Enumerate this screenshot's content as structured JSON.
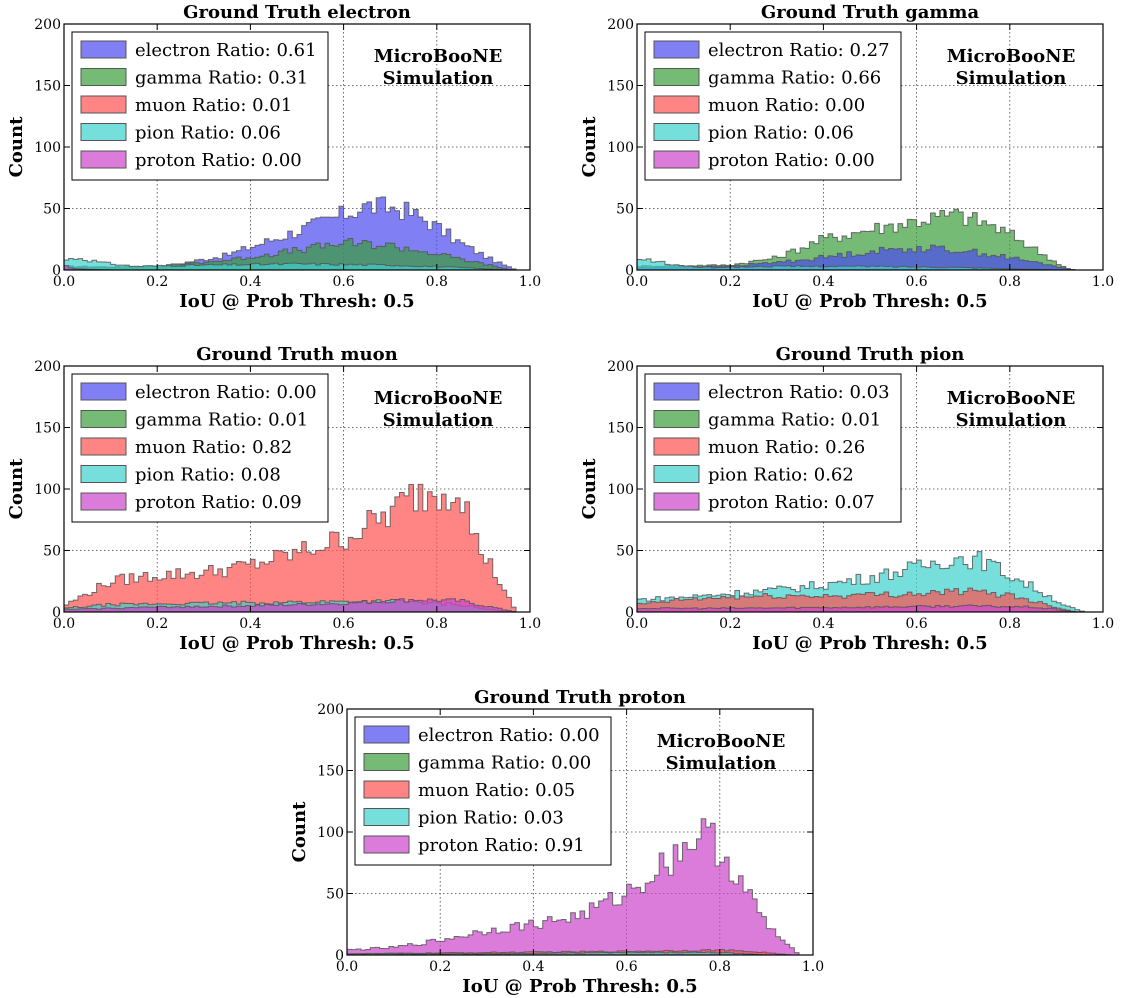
{
  "figure": {
    "annotation_lines": [
      "MicroBooNE",
      "Simulation"
    ]
  },
  "colors": {
    "electron": "#4a4af0",
    "gamma": "#3a9c3a",
    "muon": "#ff5050",
    "pion": "#3cd0cc",
    "proton": "#cc44cc"
  },
  "chart_data": [
    {
      "type": "histogram",
      "title": "Ground Truth electron",
      "xlabel": "IoU @ Prob Thresh: 0.5",
      "ylabel": "Count",
      "xlim": [
        0.0,
        1.0
      ],
      "ylim": [
        0,
        200
      ],
      "xticks": [
        "0.0",
        "0.2",
        "0.4",
        "0.6",
        "0.8",
        "1.0"
      ],
      "yticks": [
        "0",
        "50",
        "100",
        "150",
        "200"
      ],
      "grid": true,
      "legend": "top-left",
      "legend_entries": [
        "electron Ratio: 0.61",
        "gamma Ratio: 0.31",
        "muon Ratio: 0.01",
        "pion Ratio: 0.06",
        "proton Ratio: 0.00"
      ],
      "series": [
        {
          "key": "electron",
          "shape": [
            [
              0,
              3
            ],
            [
              0.2,
              2
            ],
            [
              0.35,
              12
            ],
            [
              0.45,
              25
            ],
            [
              0.55,
              38
            ],
            [
              0.65,
              52
            ],
            [
              0.72,
              50
            ],
            [
              0.78,
              40
            ],
            [
              0.85,
              22
            ],
            [
              0.92,
              8
            ],
            [
              0.97,
              0
            ]
          ]
        },
        {
          "key": "gamma",
          "shape": [
            [
              0,
              2
            ],
            [
              0.2,
              3
            ],
            [
              0.35,
              8
            ],
            [
              0.5,
              16
            ],
            [
              0.6,
              22
            ],
            [
              0.7,
              20
            ],
            [
              0.8,
              13
            ],
            [
              0.9,
              5
            ],
            [
              0.96,
              0
            ]
          ]
        },
        {
          "key": "pion",
          "shape": [
            [
              0,
              8
            ],
            [
              0.03,
              10
            ],
            [
              0.08,
              6
            ],
            [
              0.15,
              3
            ],
            [
              0.3,
              4
            ],
            [
              0.5,
              5
            ],
            [
              0.7,
              4
            ],
            [
              0.85,
              2
            ],
            [
              0.95,
              0
            ]
          ]
        },
        {
          "key": "proton",
          "shape": [
            [
              0,
              4
            ],
            [
              0.02,
              1
            ],
            [
              0.1,
              0
            ]
          ]
        }
      ]
    },
    {
      "type": "histogram",
      "title": "Ground Truth gamma",
      "xlabel": "IoU @ Prob Thresh: 0.5",
      "ylabel": "Count",
      "xlim": [
        0.0,
        1.0
      ],
      "ylim": [
        0,
        200
      ],
      "xticks": [
        "0.0",
        "0.2",
        "0.4",
        "0.6",
        "0.8",
        "1.0"
      ],
      "yticks": [
        "0",
        "50",
        "100",
        "150",
        "200"
      ],
      "grid": true,
      "legend": "top-left",
      "legend_entries": [
        "electron Ratio: 0.27",
        "gamma Ratio: 0.66",
        "muon Ratio: 0.00",
        "pion Ratio: 0.06",
        "proton Ratio: 0.00"
      ],
      "series": [
        {
          "key": "gamma",
          "shape": [
            [
              0,
              3
            ],
            [
              0.2,
              4
            ],
            [
              0.3,
              10
            ],
            [
              0.4,
              25
            ],
            [
              0.5,
              33
            ],
            [
              0.6,
              40
            ],
            [
              0.68,
              45
            ],
            [
              0.75,
              38
            ],
            [
              0.82,
              25
            ],
            [
              0.9,
              6
            ],
            [
              0.93,
              0
            ]
          ]
        },
        {
          "key": "electron",
          "shape": [
            [
              0,
              2
            ],
            [
              0.2,
              3
            ],
            [
              0.35,
              8
            ],
            [
              0.5,
              15
            ],
            [
              0.6,
              18
            ],
            [
              0.7,
              16
            ],
            [
              0.8,
              10
            ],
            [
              0.9,
              3
            ],
            [
              0.94,
              0
            ]
          ]
        },
        {
          "key": "pion",
          "shape": [
            [
              0,
              8
            ],
            [
              0.03,
              8
            ],
            [
              0.08,
              4
            ],
            [
              0.15,
              2
            ],
            [
              0.3,
              3
            ],
            [
              0.5,
              3
            ],
            [
              0.7,
              2
            ],
            [
              0.9,
              0
            ]
          ]
        }
      ]
    },
    {
      "type": "histogram",
      "title": "Ground Truth muon",
      "xlabel": "IoU @ Prob Thresh: 0.5",
      "ylabel": "Count",
      "xlim": [
        0.0,
        1.0
      ],
      "ylim": [
        0,
        200
      ],
      "xticks": [
        "0.0",
        "0.2",
        "0.4",
        "0.6",
        "0.8",
        "1.0"
      ],
      "yticks": [
        "0",
        "50",
        "100",
        "150",
        "200"
      ],
      "grid": true,
      "legend": "top-left",
      "legend_entries": [
        "electron Ratio: 0.00",
        "gamma Ratio: 0.01",
        "muon Ratio: 0.82",
        "pion Ratio: 0.08",
        "proton Ratio: 0.09"
      ],
      "series": [
        {
          "key": "muon",
          "shape": [
            [
              0,
              5
            ],
            [
              0.05,
              15
            ],
            [
              0.1,
              25
            ],
            [
              0.2,
              30
            ],
            [
              0.3,
              32
            ],
            [
              0.4,
              38
            ],
            [
              0.5,
              48
            ],
            [
              0.6,
              60
            ],
            [
              0.7,
              80
            ],
            [
              0.75,
              95
            ],
            [
              0.82,
              100
            ],
            [
              0.85,
              105
            ],
            [
              0.88,
              60
            ],
            [
              0.92,
              35
            ],
            [
              0.97,
              0
            ]
          ]
        },
        {
          "key": "pion",
          "shape": [
            [
              0,
              3
            ],
            [
              0.1,
              6
            ],
            [
              0.3,
              7
            ],
            [
              0.5,
              8
            ],
            [
              0.7,
              9
            ],
            [
              0.85,
              6
            ],
            [
              0.95,
              0
            ]
          ]
        },
        {
          "key": "proton",
          "shape": [
            [
              0,
              2
            ],
            [
              0.2,
              4
            ],
            [
              0.4,
              5
            ],
            [
              0.6,
              7
            ],
            [
              0.75,
              10
            ],
            [
              0.85,
              9
            ],
            [
              0.93,
              3
            ],
            [
              0.97,
              0
            ]
          ]
        }
      ]
    },
    {
      "type": "histogram",
      "title": "Ground Truth pion",
      "xlabel": "IoU @ Prob Thresh: 0.5",
      "ylabel": "Count",
      "xlim": [
        0.0,
        1.0
      ],
      "ylim": [
        0,
        200
      ],
      "xticks": [
        "0.0",
        "0.2",
        "0.4",
        "0.6",
        "0.8",
        "1.0"
      ],
      "yticks": [
        "0",
        "50",
        "100",
        "150",
        "200"
      ],
      "grid": true,
      "legend": "top-left",
      "legend_entries": [
        "electron Ratio: 0.03",
        "gamma Ratio: 0.01",
        "muon Ratio: 0.26",
        "pion Ratio: 0.62",
        "proton Ratio: 0.07"
      ],
      "series": [
        {
          "key": "pion",
          "shape": [
            [
              0,
              10
            ],
            [
              0.1,
              12
            ],
            [
              0.2,
              15
            ],
            [
              0.3,
              18
            ],
            [
              0.4,
              22
            ],
            [
              0.5,
              28
            ],
            [
              0.6,
              36
            ],
            [
              0.68,
              44
            ],
            [
              0.74,
              42
            ],
            [
              0.8,
              30
            ],
            [
              0.86,
              18
            ],
            [
              0.92,
              5
            ],
            [
              0.96,
              0
            ]
          ]
        },
        {
          "key": "muon",
          "shape": [
            [
              0,
              6
            ],
            [
              0.1,
              10
            ],
            [
              0.2,
              12
            ],
            [
              0.3,
              13
            ],
            [
              0.4,
              13
            ],
            [
              0.5,
              14
            ],
            [
              0.6,
              15
            ],
            [
              0.7,
              17
            ],
            [
              0.8,
              14
            ],
            [
              0.88,
              6
            ],
            [
              0.94,
              0
            ]
          ]
        },
        {
          "key": "proton",
          "shape": [
            [
              0,
              3
            ],
            [
              0.2,
              3
            ],
            [
              0.5,
              4
            ],
            [
              0.7,
              5
            ],
            [
              0.85,
              4
            ],
            [
              0.95,
              0
            ]
          ]
        }
      ]
    },
    {
      "type": "histogram",
      "title": "Ground Truth proton",
      "xlabel": "IoU @ Prob Thresh: 0.5",
      "ylabel": "Count",
      "xlim": [
        0.0,
        1.0
      ],
      "ylim": [
        0,
        200
      ],
      "xticks": [
        "0.0",
        "0.2",
        "0.4",
        "0.6",
        "0.8",
        "1.0"
      ],
      "yticks": [
        "0",
        "50",
        "100",
        "150",
        "200"
      ],
      "grid": true,
      "legend": "top-left",
      "legend_entries": [
        "electron Ratio: 0.00",
        "gamma Ratio: 0.00",
        "muon Ratio: 0.05",
        "pion Ratio: 0.03",
        "proton Ratio: 0.91"
      ],
      "series": [
        {
          "key": "proton",
          "shape": [
            [
              0,
              4
            ],
            [
              0.1,
              6
            ],
            [
              0.2,
              12
            ],
            [
              0.3,
              20
            ],
            [
              0.4,
              25
            ],
            [
              0.5,
              32
            ],
            [
              0.6,
              50
            ],
            [
              0.65,
              65
            ],
            [
              0.7,
              80
            ],
            [
              0.75,
              98
            ],
            [
              0.78,
              95
            ],
            [
              0.82,
              75
            ],
            [
              0.86,
              50
            ],
            [
              0.9,
              25
            ],
            [
              0.94,
              10
            ],
            [
              0.97,
              0
            ]
          ]
        },
        {
          "key": "muon",
          "shape": [
            [
              0,
              1
            ],
            [
              0.3,
              2
            ],
            [
              0.6,
              3
            ],
            [
              0.8,
              4
            ],
            [
              0.9,
              2
            ],
            [
              0.95,
              0
            ]
          ]
        },
        {
          "key": "pion",
          "shape": [
            [
              0,
              1
            ],
            [
              0.3,
              1
            ],
            [
              0.6,
              2
            ],
            [
              0.8,
              2
            ],
            [
              0.9,
              0
            ]
          ]
        }
      ]
    }
  ]
}
